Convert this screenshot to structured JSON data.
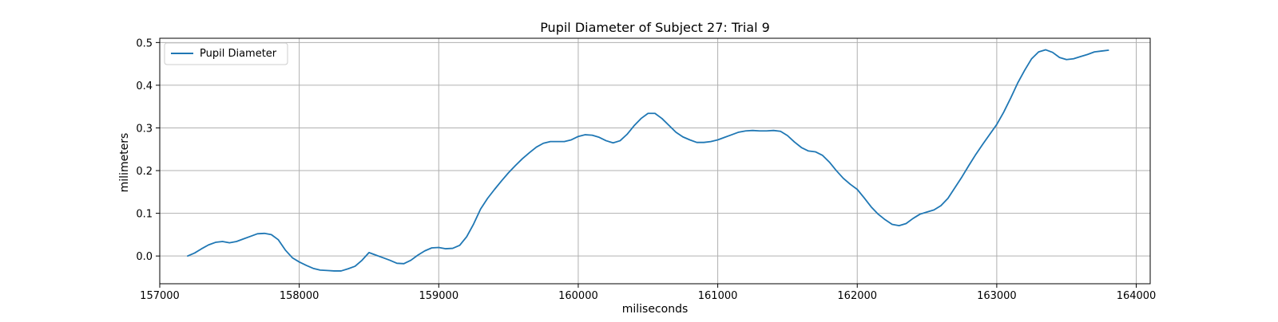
{
  "chart_data": {
    "type": "line",
    "title": "Pupil Diameter of Subject 27: Trial 9",
    "xlabel": "miliseconds",
    "ylabel": "milimeters",
    "xlim": [
      157000,
      164100
    ],
    "ylim": [
      -0.065,
      0.51
    ],
    "xticks": [
      157000,
      158000,
      159000,
      160000,
      161000,
      162000,
      163000,
      164000
    ],
    "yticks": [
      0.0,
      0.1,
      0.2,
      0.3,
      0.4,
      0.5
    ],
    "xtick_labels": [
      "157000",
      "158000",
      "159000",
      "160000",
      "161000",
      "162000",
      "163000",
      "164000"
    ],
    "ytick_labels": [
      "0.0",
      "0.1",
      "0.2",
      "0.3",
      "0.4",
      "0.5"
    ],
    "grid": true,
    "legend": {
      "placement": "top-left",
      "entries": [
        "Pupil Diameter"
      ]
    },
    "series": [
      {
        "name": "Pupil Diameter",
        "color": "#1f77b4",
        "x": [
          157200,
          157250,
          157300,
          157350,
          157400,
          157450,
          157500,
          157550,
          157600,
          157650,
          157700,
          157750,
          157800,
          157850,
          157900,
          157950,
          158000,
          158050,
          158100,
          158150,
          158200,
          158250,
          158300,
          158350,
          158400,
          158450,
          158500,
          158550,
          158600,
          158650,
          158700,
          158750,
          158800,
          158850,
          158900,
          158950,
          159000,
          159050,
          159100,
          159150,
          159200,
          159250,
          159300,
          159350,
          159400,
          159450,
          159500,
          159550,
          159600,
          159650,
          159700,
          159750,
          159800,
          159850,
          159900,
          159950,
          160000,
          160050,
          160100,
          160150,
          160200,
          160250,
          160300,
          160350,
          160400,
          160450,
          160500,
          160550,
          160600,
          160650,
          160700,
          160750,
          160800,
          160850,
          160900,
          160950,
          161000,
          161050,
          161100,
          161150,
          161200,
          161250,
          161300,
          161350,
          161400,
          161450,
          161500,
          161550,
          161600,
          161650,
          161700,
          161750,
          161800,
          161850,
          161900,
          161950,
          162000,
          162050,
          162100,
          162150,
          162200,
          162250,
          162300,
          162350,
          162400,
          162450,
          162500,
          162550,
          162600,
          162650,
          162700,
          162750,
          162800,
          162850,
          162900,
          162950,
          163000,
          163050,
          163100,
          163150,
          163200,
          163250,
          163300,
          163350,
          163400,
          163450,
          163500,
          163550,
          163600,
          163650,
          163700,
          163750,
          163800
        ],
        "y": [
          0.0,
          0.007,
          0.017,
          0.026,
          0.032,
          0.034,
          0.031,
          0.034,
          0.04,
          0.046,
          0.052,
          0.053,
          0.05,
          0.038,
          0.014,
          -0.004,
          -0.014,
          -0.022,
          -0.029,
          -0.033,
          -0.034,
          -0.035,
          -0.035,
          -0.03,
          -0.024,
          -0.01,
          0.008,
          0.002,
          -0.004,
          -0.01,
          -0.017,
          -0.018,
          -0.01,
          0.002,
          0.012,
          0.019,
          0.02,
          0.017,
          0.018,
          0.025,
          0.045,
          0.075,
          0.11,
          0.135,
          0.156,
          0.176,
          0.195,
          0.212,
          0.228,
          0.242,
          0.255,
          0.264,
          0.268,
          0.268,
          0.268,
          0.272,
          0.28,
          0.284,
          0.283,
          0.278,
          0.27,
          0.265,
          0.27,
          0.285,
          0.305,
          0.322,
          0.334,
          0.334,
          0.322,
          0.306,
          0.29,
          0.279,
          0.272,
          0.266,
          0.266,
          0.268,
          0.272,
          0.278,
          0.284,
          0.29,
          0.293,
          0.294,
          0.293,
          0.293,
          0.294,
          0.292,
          0.282,
          0.267,
          0.254,
          0.246,
          0.244,
          0.236,
          0.22,
          0.2,
          0.182,
          0.168,
          0.156,
          0.136,
          0.115,
          0.098,
          0.085,
          0.074,
          0.071,
          0.076,
          0.088,
          0.098,
          0.103,
          0.108,
          0.118,
          0.135,
          0.16,
          0.185,
          0.212,
          0.238,
          0.262,
          0.285,
          0.308,
          0.337,
          0.37,
          0.405,
          0.435,
          0.462,
          0.478,
          0.483,
          0.477,
          0.465,
          0.46,
          0.462,
          0.467,
          0.472,
          0.478,
          0.48,
          0.482
        ]
      }
    ]
  }
}
